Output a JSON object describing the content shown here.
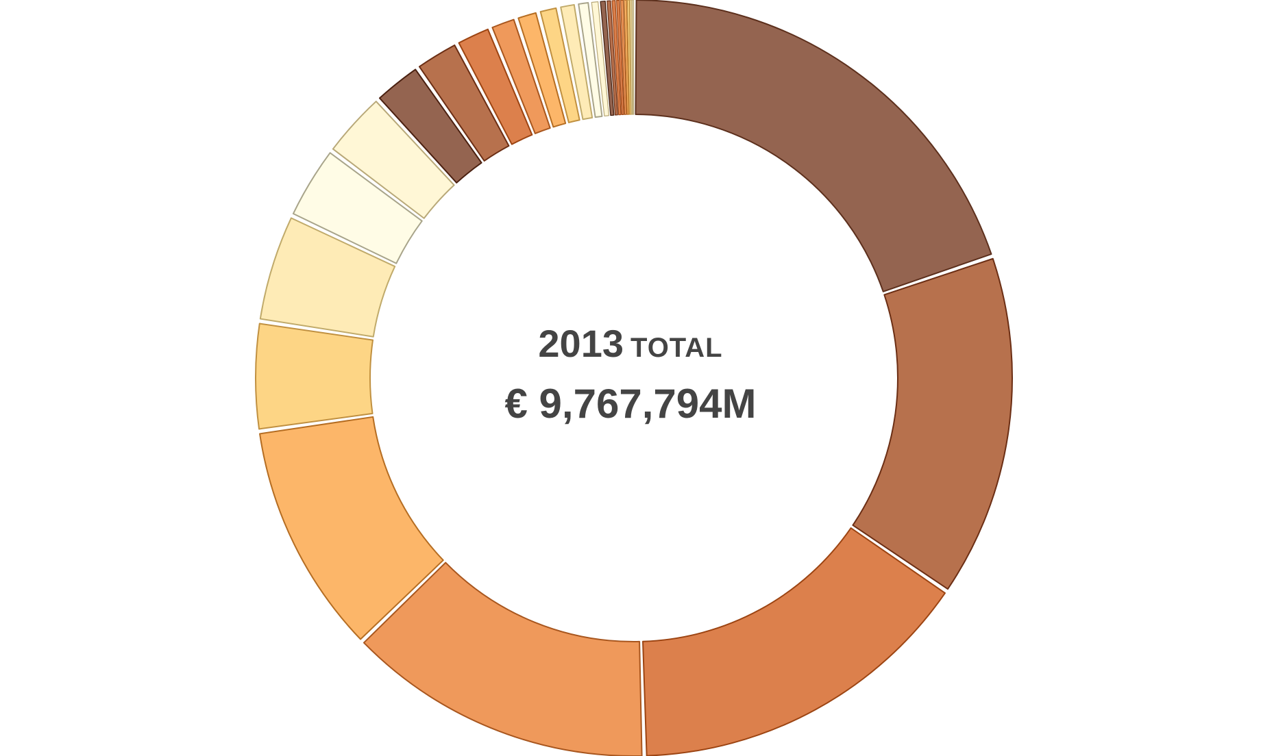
{
  "chart_data": {
    "type": "pie",
    "variant": "donut",
    "center": {
      "year": "2013",
      "label": "TOTAL",
      "amount": "€ 9,767,794M"
    },
    "total": 9767794,
    "unit": "€M",
    "segments": [
      {
        "share_pct": 20.4,
        "color": "#946450",
        "stroke": "#5c2f1c"
      },
      {
        "share_pct": 15.2,
        "color": "#b7714d",
        "stroke": "#6b2e14"
      },
      {
        "share_pct": 15.5,
        "color": "#dc804c",
        "stroke": "#9c4412"
      },
      {
        "share_pct": 13.6,
        "color": "#ef995b",
        "stroke": "#a8561e"
      },
      {
        "share_pct": 10.3,
        "color": "#fcb669",
        "stroke": "#b56d22"
      },
      {
        "share_pct": 4.8,
        "color": "#fdd585",
        "stroke": "#c09040"
      },
      {
        "share_pct": 4.8,
        "color": "#feebb6",
        "stroke": "#c0aa6a"
      },
      {
        "share_pct": 3.3,
        "color": "#fffce6",
        "stroke": "#a8a48a"
      },
      {
        "share_pct": 3.0,
        "color": "#fff7d6",
        "stroke": "#b8a878"
      },
      {
        "share_pct": 2.2,
        "color": "#946450",
        "stroke": "#4a2010"
      },
      {
        "share_pct": 2.0,
        "color": "#b7714d",
        "stroke": "#6b2e14"
      },
      {
        "share_pct": 1.6,
        "color": "#dc804c",
        "stroke": "#9c4412"
      },
      {
        "share_pct": 1.2,
        "color": "#ef995b",
        "stroke": "#a8561e"
      },
      {
        "share_pct": 1.0,
        "color": "#fcb669",
        "stroke": "#b56d22"
      },
      {
        "share_pct": 0.9,
        "color": "#fdd585",
        "stroke": "#c09040"
      },
      {
        "share_pct": 0.8,
        "color": "#feebb6",
        "stroke": "#c0aa6a"
      },
      {
        "share_pct": 0.6,
        "color": "#fffce6",
        "stroke": "#a8a48a"
      },
      {
        "share_pct": 0.4,
        "color": "#fff7d6",
        "stroke": "#b8a878"
      },
      {
        "share_pct": 0.3,
        "color": "#946450",
        "stroke": "#3a1808"
      },
      {
        "share_pct": 0.22,
        "color": "#b7714d",
        "stroke": "#6b2e14"
      },
      {
        "share_pct": 0.2,
        "color": "#dc804c",
        "stroke": "#9c4412"
      },
      {
        "share_pct": 0.18,
        "color": "#dc804c",
        "stroke": "#9c4412"
      },
      {
        "share_pct": 0.16,
        "color": "#ef995b",
        "stroke": "#a8561e"
      },
      {
        "share_pct": 0.14,
        "color": "#fcb669",
        "stroke": "#b56d22"
      },
      {
        "share_pct": 0.12,
        "color": "#fdd585",
        "stroke": "#c09040"
      },
      {
        "share_pct": 0.1,
        "color": "#feebb6",
        "stroke": "#c0aa6a"
      },
      {
        "share_pct": 0.08,
        "color": "#fff7d6",
        "stroke": "#b8a878"
      }
    ]
  }
}
